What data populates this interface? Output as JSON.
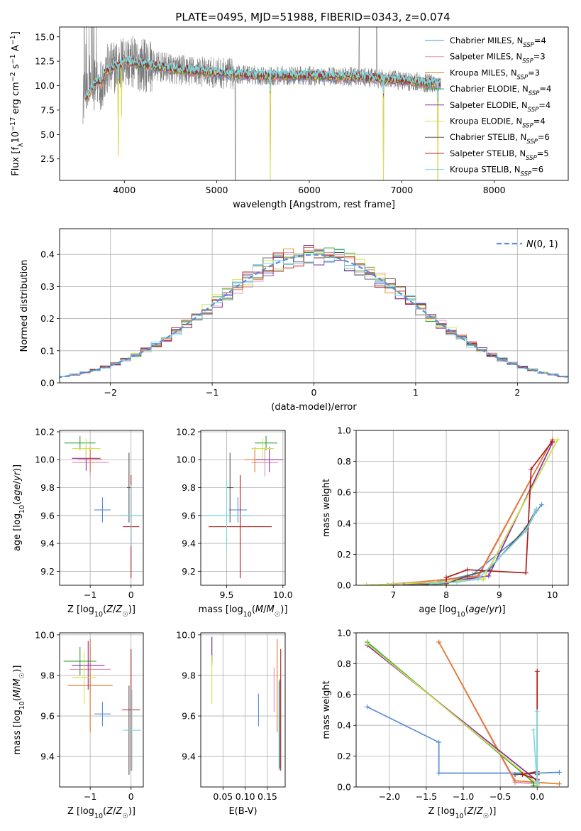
{
  "figure": {
    "title": "PLATE=0495, MJD=51988, FIBERID=0343, z=0.074"
  },
  "models": [
    {
      "label": "Chabrier MILES, N_SSP=4",
      "lab1": "Chabrier MILES, N",
      "lab2": "=4",
      "color": "#5b8fd6"
    },
    {
      "label": "Salpeter MILES, N_SSP=3",
      "lab1": "Salpeter MILES, N",
      "lab2": "=3",
      "color": "#e58fb4"
    },
    {
      "label": "Kroupa MILES, N_SSP=3",
      "lab1": "Kroupa MILES, N",
      "lab2": "=3",
      "color": "#e07b2a"
    },
    {
      "label": "Chabrier ELODIE, N_SSP=4",
      "lab1": "Chabrier ELODIE, N",
      "lab2": "=4",
      "color": "#2e9e3b"
    },
    {
      "label": "Salpeter ELODIE, N_SSP=4",
      "lab1": "Salpeter ELODIE, N",
      "lab2": "=4",
      "color": "#8a2ea8"
    },
    {
      "label": "Kroupa ELODIE, N_SSP=4",
      "lab1": "Kroupa ELODIE, N",
      "lab2": "=4",
      "color": "#d4e24a"
    },
    {
      "label": "Chabrier STELIB, N_SSP=6",
      "lab1": "Chabrier STELIB, N",
      "lab2": "=6",
      "color": "#555555"
    },
    {
      "label": "Salpeter STELIB, N_SSP=5",
      "lab1": "Salpeter STELIB, N",
      "lab2": "=5",
      "color": "#b01b1b"
    },
    {
      "label": "Kroupa STELIB, N_SSP=6",
      "lab1": "Kroupa STELIB, N",
      "lab2": "=6",
      "color": "#7dd8de"
    }
  ],
  "legend_subscript": "SSP",
  "chart_data": [
    {
      "id": "spectrum",
      "type": "line",
      "xlabel": "wavelength [Angstrom, rest frame]",
      "ylabel": "Flux [f_λ 10^-17 erg cm^-2 s^-1 A^-1]",
      "xlim": [
        3300,
        8800
      ],
      "ylim": [
        0.3,
        16
      ],
      "xticks": [
        4000,
        5000,
        6000,
        7000,
        8000
      ],
      "yticks": [
        2.5,
        5.0,
        7.5,
        10.0,
        12.5,
        15.0
      ],
      "grid": false,
      "legend_position": "upper right",
      "continuum_anchors": {
        "x": [
          3600,
          3650,
          3700,
          3750,
          3800,
          3850,
          3900,
          3950,
          4000,
          4100,
          4300,
          4600,
          5000,
          5500,
          6000,
          6500,
          7000,
          7400,
          8000,
          8500
        ],
        "y": [
          8.8,
          9.8,
          10.5,
          10.2,
          11.5,
          11.6,
          12.0,
          12.1,
          12.6,
          12.3,
          12.0,
          11.6,
          11.3,
          11.0,
          11.0,
          10.9,
          10.5,
          10.2,
          10.0,
          10.0
        ]
      },
      "sharp_features": [
        {
          "x": 3934,
          "depth": 9.0
        },
        {
          "x": 3969,
          "depth": 5.5
        },
        {
          "x": 5577,
          "depth": 11.0
        },
        {
          "x": 6800,
          "depth": 11.0
        },
        {
          "x": 7390,
          "depth": 11.0
        }
      ]
    },
    {
      "id": "residuals",
      "type": "step",
      "xlabel": "(data-model)/error",
      "ylabel": "Normed distribution",
      "xlim": [
        -2.5,
        2.5
      ],
      "ylim": [
        0.0,
        0.48
      ],
      "xticks": [
        -2,
        -1,
        0,
        1,
        2
      ],
      "yticks": [
        0.0,
        0.1,
        0.2,
        0.3,
        0.4
      ],
      "grid": true,
      "reference": {
        "label": "N(0,1)",
        "mean": 0,
        "sigma": 1,
        "color": "#5b8fd6",
        "style": "dashed"
      },
      "bin_width": 0.1
    },
    {
      "id": "age_vs_Z",
      "type": "errorbar",
      "xlabel": "Z [log10(Z/Z☉)]",
      "ylabel": "age [log10(age/yr)]",
      "xlim": [
        -1.75,
        0.3
      ],
      "ylim": [
        9.1,
        10.21
      ],
      "xticks": [
        -1,
        0
      ],
      "yticks": [
        9.2,
        9.4,
        9.6,
        9.8,
        10.0,
        10.2
      ],
      "grid": true,
      "points": [
        {
          "model": 0,
          "x": -0.7,
          "xerr": 0.2,
          "y": 9.64,
          "yerr": 0.09
        },
        {
          "model": 1,
          "x": -1.0,
          "xerr": 0.45,
          "y": 9.98,
          "yerr": 0.1
        },
        {
          "model": 2,
          "x": -1.0,
          "xerr": 0.3,
          "y": 10.0,
          "yerr": 0.09
        },
        {
          "model": 3,
          "x": -1.25,
          "xerr": 0.38,
          "y": 10.12,
          "yerr": 0.05
        },
        {
          "model": 4,
          "x": -1.1,
          "xerr": 0.35,
          "y": 10.01,
          "yerr": 0.09
        },
        {
          "model": 5,
          "x": -1.1,
          "xerr": 0.35,
          "y": 10.08,
          "yerr": 0.07
        },
        {
          "model": 6,
          "x": -0.05,
          "xerr": 0.05,
          "y": 9.8,
          "yerr": 0.25
        },
        {
          "model": 7,
          "x": 0.0,
          "xerr": 0.2,
          "y": 9.52,
          "yerr": 0.37
        },
        {
          "model": 8,
          "x": 0.0,
          "xerr": 0.25,
          "y": 9.6,
          "yerr": 0.22
        }
      ]
    },
    {
      "id": "age_vs_mass",
      "type": "errorbar",
      "xlabel": "mass [log10(M/M☉)]",
      "ylabel": "",
      "xlim": [
        9.27,
        10.02
      ],
      "ylim": [
        9.1,
        10.21
      ],
      "xticks": [
        9.5,
        10.0
      ],
      "yticks": [
        9.2,
        9.4,
        9.6,
        9.8,
        10.0,
        10.2
      ],
      "grid": true,
      "points": [
        {
          "model": 0,
          "x": 9.6,
          "xerr": 0.08,
          "y": 9.64,
          "yerr": 0.09
        },
        {
          "model": 1,
          "x": 9.84,
          "xerr": 0.12,
          "y": 9.98,
          "yerr": 0.1
        },
        {
          "model": 2,
          "x": 9.75,
          "xerr": 0.09,
          "y": 10.0,
          "yerr": 0.09
        },
        {
          "model": 3,
          "x": 9.85,
          "xerr": 0.1,
          "y": 10.12,
          "yerr": 0.05
        },
        {
          "model": 4,
          "x": 9.88,
          "xerr": 0.12,
          "y": 10.0,
          "yerr": 0.09
        },
        {
          "model": 5,
          "x": 9.82,
          "xerr": 0.1,
          "y": 10.08,
          "yerr": 0.07
        },
        {
          "model": 6,
          "x": 9.53,
          "xerr": 0.03,
          "y": 9.8,
          "yerr": 0.25
        },
        {
          "model": 7,
          "x": 9.62,
          "xerr": 0.28,
          "y": 9.52,
          "yerr": 0.37
        },
        {
          "model": 8,
          "x": 9.5,
          "xerr": 0.22,
          "y": 9.6,
          "yerr": 0.25
        }
      ]
    },
    {
      "id": "weight_vs_age",
      "type": "line",
      "xlabel": "age [log10(age/yr)]",
      "ylabel": "mass weight",
      "xlim": [
        6.3,
        10.3
      ],
      "ylim": [
        0.0,
        1.0
      ],
      "xticks": [
        7,
        8,
        9,
        10
      ],
      "yticks": [
        0.0,
        0.2,
        0.4,
        0.6,
        0.8,
        1.0
      ],
      "grid": true,
      "series": [
        {
          "model": 0,
          "x": [
            7.8,
            8.5,
            9.5,
            9.7,
            9.8
          ],
          "y": [
            0.02,
            0.07,
            0.35,
            0.48,
            0.52
          ]
        },
        {
          "model": 1,
          "x": [
            7.0,
            8.6,
            10.0
          ],
          "y": [
            0.01,
            0.05,
            0.94
          ]
        },
        {
          "model": 2,
          "x": [
            6.9,
            8.6,
            10.0
          ],
          "y": [
            0.0,
            0.06,
            0.94
          ]
        },
        {
          "model": 3,
          "x": [
            6.5,
            7.9,
            8.7,
            10.1
          ],
          "y": [
            0.0,
            0.02,
            0.04,
            0.94
          ]
        },
        {
          "model": 4,
          "x": [
            6.5,
            8.0,
            8.8,
            10.0
          ],
          "y": [
            0.0,
            0.02,
            0.06,
            0.92
          ]
        },
        {
          "model": 5,
          "x": [
            6.5,
            7.8,
            8.7,
            10.1
          ],
          "y": [
            0.0,
            0.02,
            0.04,
            0.94
          ]
        },
        {
          "model": 6,
          "x": [
            7.2,
            8.0,
            8.4,
            8.8,
            9.5,
            9.7
          ],
          "y": [
            0.0,
            0.01,
            0.06,
            0.1,
            0.37,
            0.49
          ]
        },
        {
          "model": 7,
          "x": [
            8.0,
            8.0,
            8.4,
            9.5,
            9.6,
            10.0
          ],
          "y": [
            0.01,
            0.05,
            0.1,
            0.08,
            0.75,
            0.93
          ]
        },
        {
          "model": 8,
          "x": [
            7.7,
            8.2,
            8.6,
            9.5,
            9.7
          ],
          "y": [
            0.01,
            0.02,
            0.04,
            0.35,
            0.49
          ]
        }
      ]
    },
    {
      "id": "mass_vs_Z",
      "type": "errorbar",
      "xlabel": "Z [log10(Z/Z☉)]",
      "ylabel": "mass [log10(M/M☉)]",
      "xlim": [
        -1.75,
        0.3
      ],
      "ylim": [
        9.25,
        10.01
      ],
      "xticks": [
        -1,
        0
      ],
      "yticks": [
        9.4,
        9.6,
        9.8,
        10.0
      ],
      "grid": true,
      "points": [
        {
          "model": 0,
          "x": -0.7,
          "xerr": 0.2,
          "y": 9.61,
          "yerr": 0.06
        },
        {
          "model": 1,
          "x": -1.0,
          "xerr": 0.5,
          "y": 9.83,
          "yerr": 0.1
        },
        {
          "model": 2,
          "x": -1.0,
          "xerr": 0.55,
          "y": 9.75,
          "yerr": 0.23
        },
        {
          "model": 3,
          "x": -1.25,
          "xerr": 0.4,
          "y": 9.87,
          "yerr": 0.07
        },
        {
          "model": 4,
          "x": -1.05,
          "xerr": 0.4,
          "y": 9.85,
          "yerr": 0.12
        },
        {
          "model": 5,
          "x": -1.15,
          "xerr": 0.3,
          "y": 9.79,
          "yerr": 0.13
        },
        {
          "model": 6,
          "x": -0.05,
          "xerr": 0.03,
          "y": 9.53,
          "yerr": 0.22
        },
        {
          "model": 7,
          "x": 0.0,
          "xerr": 0.22,
          "y": 9.63,
          "yerr": 0.3
        },
        {
          "model": 8,
          "x": 0.02,
          "xerr": 0.22,
          "y": 9.53,
          "yerr": 0.2
        }
      ]
    },
    {
      "id": "mass_vs_EBV",
      "type": "errorbar",
      "xlabel": "E(B-V)",
      "ylabel": "",
      "xlim": [
        0.0,
        0.19
      ],
      "ylim": [
        9.25,
        10.01
      ],
      "xticks": [
        0.05,
        0.1,
        0.15
      ],
      "xtick_labels": [
        "0.05",
        "0.10",
        "0.15"
      ],
      "yticks": [
        9.4,
        9.6,
        9.8,
        10.0
      ],
      "grid": true,
      "points": [
        {
          "model": 0,
          "x": 0.13,
          "xerr": 0.0,
          "y": 9.63,
          "yerr": 0.08
        },
        {
          "model": 1,
          "x": 0.165,
          "xerr": 0.0,
          "y": 9.73,
          "yerr": 0.11
        },
        {
          "model": 2,
          "x": 0.172,
          "xerr": 0.0,
          "y": 9.75,
          "yerr": 0.23
        },
        {
          "model": 3,
          "x": 0.025,
          "xerr": 0.0,
          "y": 9.92,
          "yerr": 0.07
        },
        {
          "model": 4,
          "x": 0.025,
          "xerr": 0.0,
          "y": 9.93,
          "yerr": 0.06
        },
        {
          "model": 5,
          "x": 0.025,
          "xerr": 0.0,
          "y": 9.78,
          "yerr": 0.12
        },
        {
          "model": 6,
          "x": 0.178,
          "xerr": 0.0,
          "y": 9.56,
          "yerr": 0.22
        },
        {
          "model": 7,
          "x": 0.18,
          "xerr": 0.0,
          "y": 9.63,
          "yerr": 0.3
        },
        {
          "model": 8,
          "x": 0.176,
          "xerr": 0.0,
          "y": 9.55,
          "yerr": 0.22
        }
      ]
    },
    {
      "id": "weight_vs_Z",
      "type": "line",
      "xlabel": "Z [log10(Z/Z☉)]",
      "ylabel": "mass weight",
      "xlim": [
        -2.45,
        0.42
      ],
      "ylim": [
        0.0,
        1.0
      ],
      "xticks": [
        -2.0,
        -1.5,
        -1.0,
        -0.5,
        0.0
      ],
      "yticks": [
        0.0,
        0.2,
        0.4,
        0.6,
        0.8,
        1.0
      ],
      "grid": true,
      "series": [
        {
          "model": 0,
          "x": [
            -2.3,
            -1.33,
            -1.33,
            0.0,
            0.3
          ],
          "y": [
            0.52,
            0.29,
            0.09,
            0.09,
            0.095
          ]
        },
        {
          "model": 1,
          "x": [
            -1.33,
            -0.3,
            0.0
          ],
          "y": [
            0.94,
            0.03,
            0.02
          ]
        },
        {
          "model": 2,
          "x": [
            -1.33,
            -0.3,
            0.0,
            0.3
          ],
          "y": [
            0.94,
            0.04,
            0.03,
            0.02
          ]
        },
        {
          "model": 3,
          "x": [
            -2.3,
            -0.05,
            -0.05,
            0.0
          ],
          "y": [
            0.94,
            0.03,
            0.01,
            0.01
          ]
        },
        {
          "model": 4,
          "x": [
            -2.3,
            0.0,
            0.0
          ],
          "y": [
            0.92,
            0.04,
            0.02
          ]
        },
        {
          "model": 5,
          "x": [
            -2.3,
            0.0,
            0.0
          ],
          "y": [
            0.93,
            0.02,
            0.01
          ]
        },
        {
          "model": 6,
          "x": [
            -0.3,
            0.0,
            0.0
          ],
          "y": [
            0.08,
            0.09,
            0.08
          ]
        },
        {
          "model": 7,
          "x": [
            0.0,
            0.0,
            -0.2,
            0.0
          ],
          "y": [
            0.75,
            0.1,
            0.08,
            0.05
          ]
        },
        {
          "model": 8,
          "x": [
            -0.05,
            0.0,
            0.0,
            0.0
          ],
          "y": [
            0.37,
            0.02,
            0.49,
            0.03
          ]
        }
      ]
    }
  ]
}
